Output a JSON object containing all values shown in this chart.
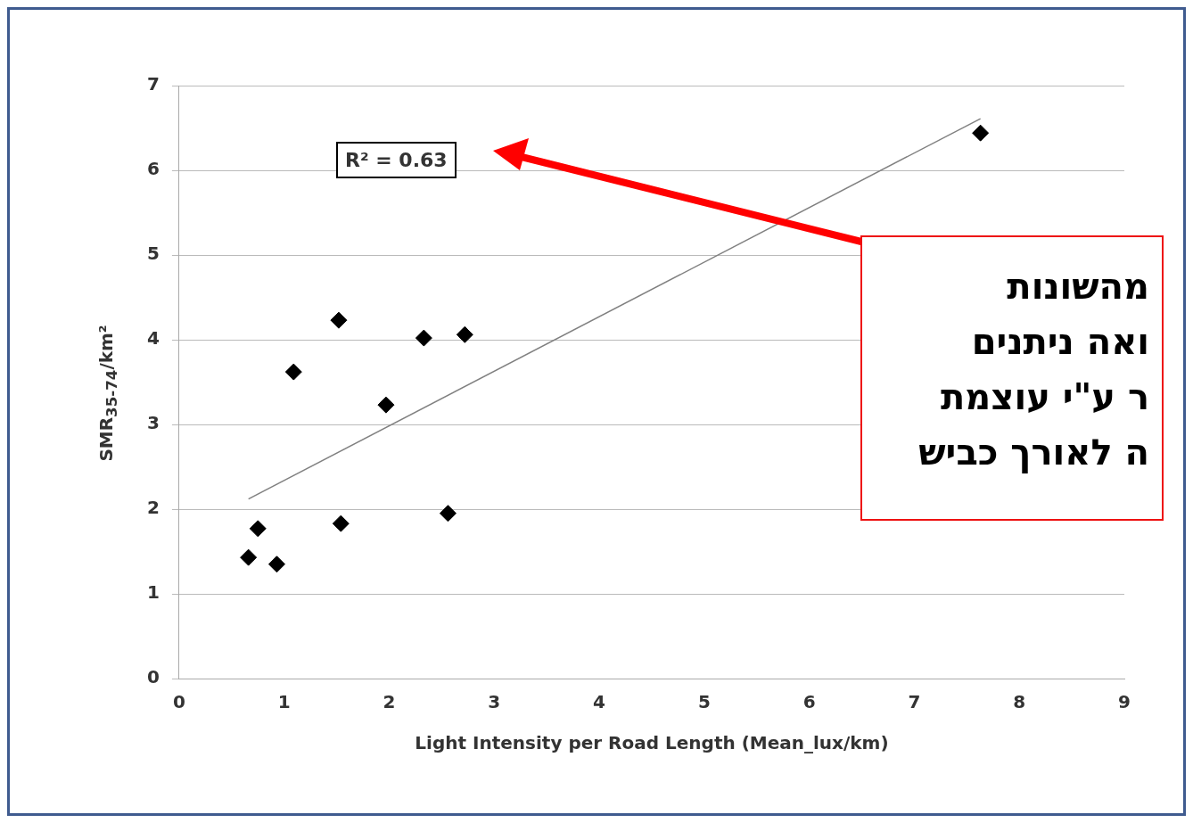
{
  "chart_data": {
    "type": "scatter",
    "xlabel": "Light Intensity per Road Length (Mean_lux/km)",
    "ylabel": "SMR$_{35-74}$/km²",
    "xlim": [
      0,
      9
    ],
    "xticks": [
      0,
      1,
      2,
      3,
      4,
      5,
      6,
      7,
      8,
      9
    ],
    "ylim": [
      0,
      7
    ],
    "yticks": [
      0,
      1,
      2,
      3,
      4,
      5,
      6,
      7
    ],
    "grid": "y",
    "marker": "diamond",
    "series": [
      {
        "color": "#000000",
        "x": [
          0.66,
          0.75,
          0.93,
          1.09,
          1.52,
          1.54,
          1.97,
          2.33,
          2.56,
          2.72,
          7.63
        ],
        "values": [
          1.43,
          1.77,
          1.35,
          3.62,
          4.23,
          1.83,
          3.23,
          4.02,
          1.95,
          4.06,
          6.44
        ]
      },
      {
        "type": "line",
        "color": "#808080",
        "marker": "none",
        "x": [
          0.66,
          7.63
        ],
        "values": [
          2.12,
          6.61
        ]
      }
    ],
    "annotations": [
      "R² = 0.63",
      "מהשונות\nואה ניתנים\nר ע\"י עוצמת\nה לאורך כביש"
    ]
  }
}
